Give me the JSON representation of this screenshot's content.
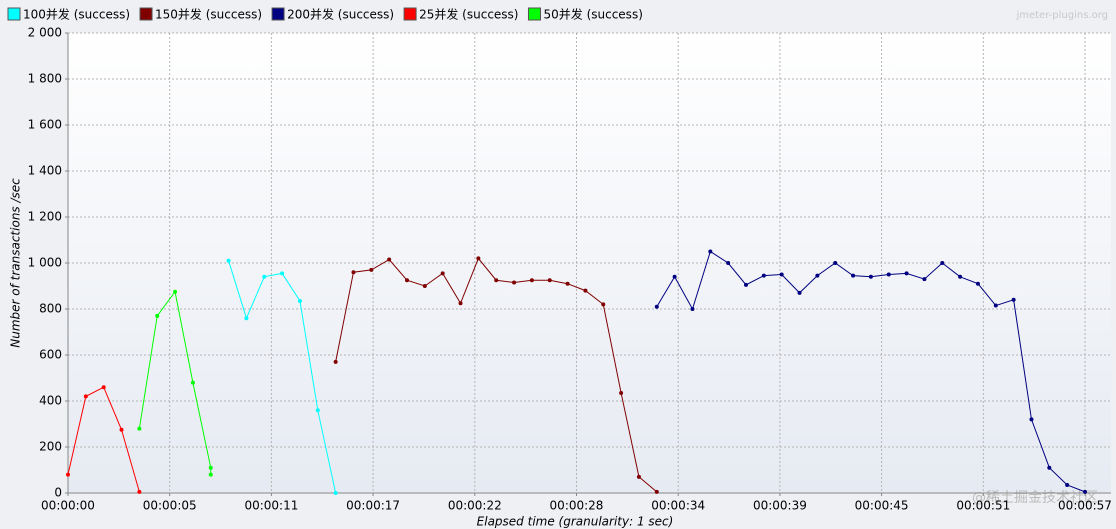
{
  "chart_data": {
    "type": "line",
    "watermark": "jmeter-plugins.org",
    "credit": "@稀土掘金技术社区",
    "x_label": "Elapsed time (granularity: 1 sec)",
    "y_label": "Number of transactions /sec",
    "xlim": [
      0,
      57
    ],
    "ylim": [
      0,
      2000
    ],
    "xticks": [
      {
        "value": 0,
        "label": "00:00:00"
      },
      {
        "value": 5.7,
        "label": "00:00:05"
      },
      {
        "value": 11.4,
        "label": "00:00:11"
      },
      {
        "value": 17.1,
        "label": "00:00:17"
      },
      {
        "value": 22.8,
        "label": "00:00:22"
      },
      {
        "value": 28.5,
        "label": "00:00:28"
      },
      {
        "value": 34.2,
        "label": "00:00:34"
      },
      {
        "value": 39.9,
        "label": "00:00:39"
      },
      {
        "value": 45.6,
        "label": "00:00:45"
      },
      {
        "value": 51.3,
        "label": "00:00:51"
      },
      {
        "value": 57,
        "label": "00:00:57"
      }
    ],
    "yticks": [
      0,
      200,
      400,
      600,
      800,
      {
        "value": 1000,
        "label": "1 000"
      },
      {
        "value": 1200,
        "label": "1 200"
      },
      {
        "value": 1400,
        "label": "1 400"
      },
      {
        "value": 1600,
        "label": "1 600"
      },
      {
        "value": 1800,
        "label": "1 800"
      },
      {
        "value": 2000,
        "label": "2 000"
      }
    ],
    "grid": true,
    "legend": "top",
    "series": [
      {
        "name": "100并发 (success)",
        "color": "#00ffff",
        "x": [
          9,
          10,
          11,
          12,
          13,
          14,
          15
        ],
        "values": [
          1010,
          760,
          940,
          955,
          835,
          360,
          0
        ]
      },
      {
        "name": "150并发 (success)",
        "color": "#800000",
        "x": [
          15,
          16,
          17,
          18,
          19,
          20,
          21,
          22,
          23,
          24,
          25,
          26,
          27,
          28,
          29,
          30,
          31,
          32,
          33
        ],
        "values": [
          570,
          960,
          970,
          1015,
          925,
          900,
          955,
          825,
          1020,
          925,
          915,
          925,
          925,
          910,
          880,
          820,
          435,
          70,
          5
        ]
      },
      {
        "name": "200并发 (success)",
        "color": "#000080",
        "x": [
          33,
          34,
          35,
          36,
          37,
          38,
          39,
          40,
          41,
          42,
          43,
          44,
          45,
          46,
          47,
          48,
          49,
          50,
          51,
          52,
          53,
          54,
          55,
          56,
          57
        ],
        "values": [
          810,
          940,
          800,
          1050,
          1000,
          905,
          945,
          950,
          870,
          945,
          1000,
          945,
          940,
          950,
          955,
          930,
          1000,
          940,
          910,
          815,
          840,
          320,
          110,
          35,
          5
        ]
      },
      {
        "name": "25并发 (success)",
        "color": "#ff0000",
        "x": [
          0,
          1,
          2,
          3,
          4
        ],
        "values": [
          80,
          420,
          460,
          275,
          5
        ]
      },
      {
        "name": "50并发 (success)",
        "color": "#00ff00",
        "x": [
          4,
          5,
          6,
          7,
          8,
          8
        ],
        "values": [
          280,
          770,
          875,
          480,
          110,
          80
        ]
      }
    ]
  }
}
